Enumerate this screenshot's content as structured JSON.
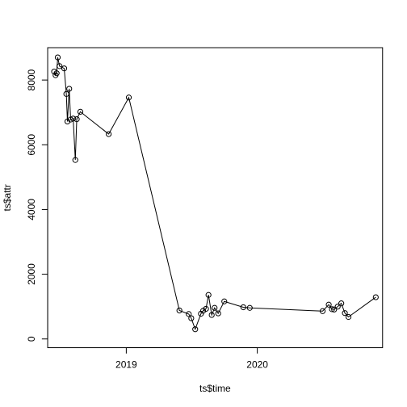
{
  "chart_data": {
    "type": "line",
    "xlabel": "ts$time",
    "ylabel": "ts$attr",
    "x_tick_labels": [
      {
        "value": "2019-01-01",
        "label": "2019"
      },
      {
        "value": "2020-01-01",
        "label": "2020"
      }
    ],
    "y_tick_labels": [
      {
        "value": 0,
        "label": "0"
      },
      {
        "value": 2000,
        "label": "2000"
      },
      {
        "value": 4000,
        "label": "4000"
      },
      {
        "value": 6000,
        "label": "6000"
      },
      {
        "value": 8000,
        "label": "8000"
      }
    ],
    "xlim": [
      "2018-05-27",
      "2020-12-15"
    ],
    "ylim": [
      -270,
      9000
    ],
    "grid": false,
    "marker": "open-circle",
    "line_color": "#000000",
    "series": [
      {
        "points": [
          {
            "x": "2018-06-14",
            "y": 8260
          },
          {
            "x": "2018-06-18",
            "y": 8150
          },
          {
            "x": "2018-06-21",
            "y": 8210
          },
          {
            "x": "2018-06-24",
            "y": 8700
          },
          {
            "x": "2018-06-29",
            "y": 8430
          },
          {
            "x": "2018-07-12",
            "y": 8360
          },
          {
            "x": "2018-07-18",
            "y": 7570
          },
          {
            "x": "2018-07-21",
            "y": 6720
          },
          {
            "x": "2018-07-26",
            "y": 7730
          },
          {
            "x": "2018-07-30",
            "y": 6780
          },
          {
            "x": "2018-08-06",
            "y": 6810
          },
          {
            "x": "2018-08-12",
            "y": 5530
          },
          {
            "x": "2018-08-16",
            "y": 6790
          },
          {
            "x": "2018-08-26",
            "y": 7020
          },
          {
            "x": "2018-11-13",
            "y": 6330
          },
          {
            "x": "2019-01-08",
            "y": 7460
          },
          {
            "x": "2019-05-29",
            "y": 880
          },
          {
            "x": "2019-06-24",
            "y": 770
          },
          {
            "x": "2019-07-01",
            "y": 640
          },
          {
            "x": "2019-07-12",
            "y": 300
          },
          {
            "x": "2019-07-28",
            "y": 780
          },
          {
            "x": "2019-08-03",
            "y": 870
          },
          {
            "x": "2019-08-11",
            "y": 930
          },
          {
            "x": "2019-08-18",
            "y": 1360
          },
          {
            "x": "2019-08-27",
            "y": 740
          },
          {
            "x": "2019-09-04",
            "y": 960
          },
          {
            "x": "2019-09-14",
            "y": 790
          },
          {
            "x": "2019-10-01",
            "y": 1160
          },
          {
            "x": "2019-11-23",
            "y": 980
          },
          {
            "x": "2019-12-11",
            "y": 960
          },
          {
            "x": "2020-07-01",
            "y": 860
          },
          {
            "x": "2020-07-18",
            "y": 1060
          },
          {
            "x": "2020-07-27",
            "y": 920
          },
          {
            "x": "2020-08-02",
            "y": 910
          },
          {
            "x": "2020-08-12",
            "y": 1000
          },
          {
            "x": "2020-08-22",
            "y": 1100
          },
          {
            "x": "2020-09-01",
            "y": 800
          },
          {
            "x": "2020-09-11",
            "y": 680
          },
          {
            "x": "2020-11-26",
            "y": 1290
          }
        ]
      }
    ]
  }
}
